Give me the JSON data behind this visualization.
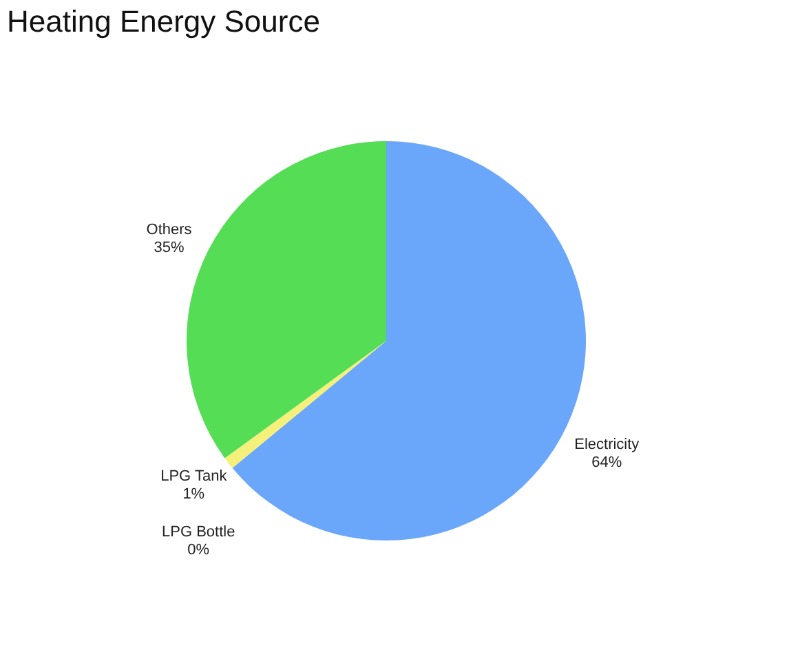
{
  "chart_data": {
    "type": "pie",
    "title": "Heating Energy Source",
    "categories": [
      "Electricity",
      "LPG Bottle",
      "LPG Tank",
      "Others"
    ],
    "values": [
      64,
      0,
      1,
      35
    ],
    "value_labels": [
      "64%",
      "0%",
      "1%",
      "35%"
    ],
    "colors": [
      "#6aa6fa",
      "#f07a3a",
      "#f5f07a",
      "#55dd55"
    ],
    "legend": false
  }
}
